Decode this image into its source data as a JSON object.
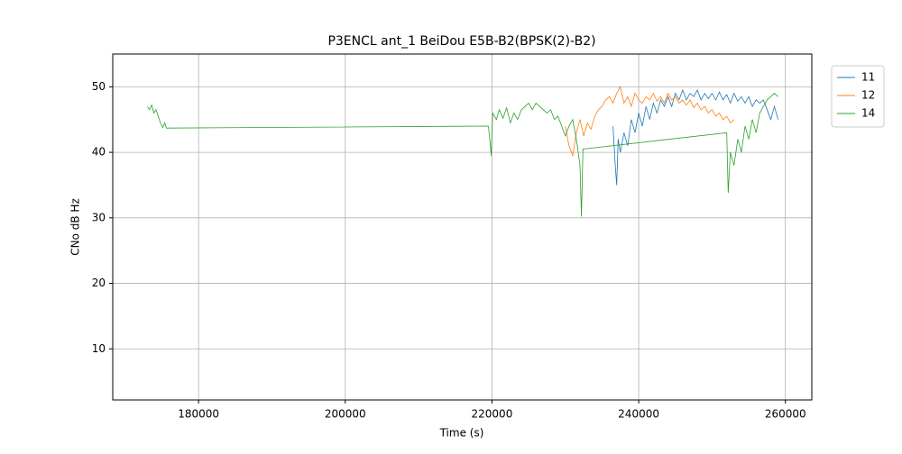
{
  "chart_data": {
    "type": "line",
    "title": "P3ENCL ant_1 BeiDou E5B-B2(BPSK(2)-B2)",
    "x_label": "Time (s)",
    "y_label": "CNo dB Hz",
    "xlim": [
      168300,
      263600
    ],
    "ylim": [
      2.2,
      55
    ],
    "xticks": [
      180000,
      200000,
      220000,
      240000,
      260000
    ],
    "yticks": [
      10,
      20,
      30,
      40,
      50
    ],
    "grid": true,
    "legend": "outside-upper-right",
    "series": [
      {
        "name": "11",
        "color": "#1f77b4",
        "x": [
          236500,
          236800,
          237000,
          237200,
          237500,
          238000,
          238500,
          239000,
          239500,
          240000,
          240500,
          241000,
          241500,
          242000,
          242500,
          243000,
          243500,
          244000,
          244500,
          245000,
          245500,
          246000,
          246500,
          247000,
          247500,
          248000,
          248500,
          249000,
          249500,
          250000,
          250500,
          251000,
          251500,
          252000,
          252500,
          253000,
          253500,
          254000,
          254500,
          255000,
          255500,
          256000,
          256500,
          257000,
          257500,
          258000,
          258500,
          259000
        ],
        "values": [
          44,
          38,
          35,
          42,
          40,
          43,
          41,
          45,
          43,
          46,
          44,
          47,
          45,
          47.5,
          46,
          48,
          47,
          48.5,
          47,
          49,
          48,
          49.5,
          48,
          49,
          48.5,
          49.5,
          48,
          49,
          48.2,
          49,
          48,
          49.2,
          48,
          48.8,
          47.5,
          49,
          47.8,
          48.5,
          47.5,
          48.5,
          47,
          48,
          47.5,
          48,
          46.5,
          45,
          47,
          45
        ]
      },
      {
        "name": "12",
        "color": "#ff7f0e",
        "x": [
          230000,
          230500,
          231000,
          231500,
          232000,
          232500,
          233000,
          233500,
          234000,
          234500,
          235000,
          235500,
          236000,
          236500,
          237000,
          237500,
          238000,
          238500,
          239000,
          239500,
          240000,
          240500,
          241000,
          241500,
          242000,
          242500,
          243000,
          243500,
          244000,
          244500,
          245000,
          245500,
          246000,
          246500,
          247000,
          247500,
          248000,
          248500,
          249000,
          249500,
          250000,
          250500,
          251000,
          251500,
          252000,
          252500,
          253000
        ],
        "values": [
          44,
          41,
          39.5,
          43,
          45,
          42.5,
          44.5,
          43.5,
          45.5,
          46.5,
          47,
          48,
          48.5,
          47.5,
          49,
          50,
          47.5,
          48.5,
          47,
          49,
          48,
          47.5,
          48.5,
          48,
          49,
          47.8,
          48.5,
          47.5,
          49,
          48,
          48.5,
          47.5,
          48,
          47.2,
          48,
          46.8,
          47.5,
          46.5,
          47,
          46,
          46.5,
          45.5,
          46,
          45,
          45.5,
          44.5,
          45
        ]
      },
      {
        "name": "14",
        "color": "#2ca02c",
        "x": [
          173000,
          173300,
          173600,
          173900,
          174200,
          174500,
          174800,
          175100,
          175400,
          175600,
          219500,
          219700,
          219900,
          220100,
          220600,
          221000,
          221500,
          222000,
          222500,
          223000,
          223500,
          224000,
          224500,
          225000,
          225500,
          226000,
          226500,
          227000,
          227500,
          228000,
          228500,
          229000,
          229500,
          230000,
          230500,
          231000,
          231500,
          232000,
          232200,
          232400,
          252000,
          252200,
          252500,
          253000,
          253500,
          254000,
          254500,
          255000,
          255500,
          256000,
          256500,
          257000,
          257500,
          258000,
          258500,
          259000
        ],
        "values": [
          47,
          46.5,
          47.2,
          46,
          46.5,
          45.5,
          44.5,
          43.8,
          44.5,
          43.7,
          44,
          42,
          39.5,
          46,
          45,
          46.5,
          45.2,
          46.8,
          44.5,
          46,
          45,
          46.5,
          47,
          47.5,
          46.5,
          47.5,
          47,
          46.5,
          46,
          46.5,
          45,
          45.5,
          44,
          42.5,
          44,
          45,
          42,
          38,
          30.2,
          40.5,
          43,
          33.8,
          40,
          38,
          42,
          40,
          44,
          42,
          45,
          43,
          46,
          47,
          48,
          48.5,
          49,
          48.5
        ]
      }
    ]
  }
}
